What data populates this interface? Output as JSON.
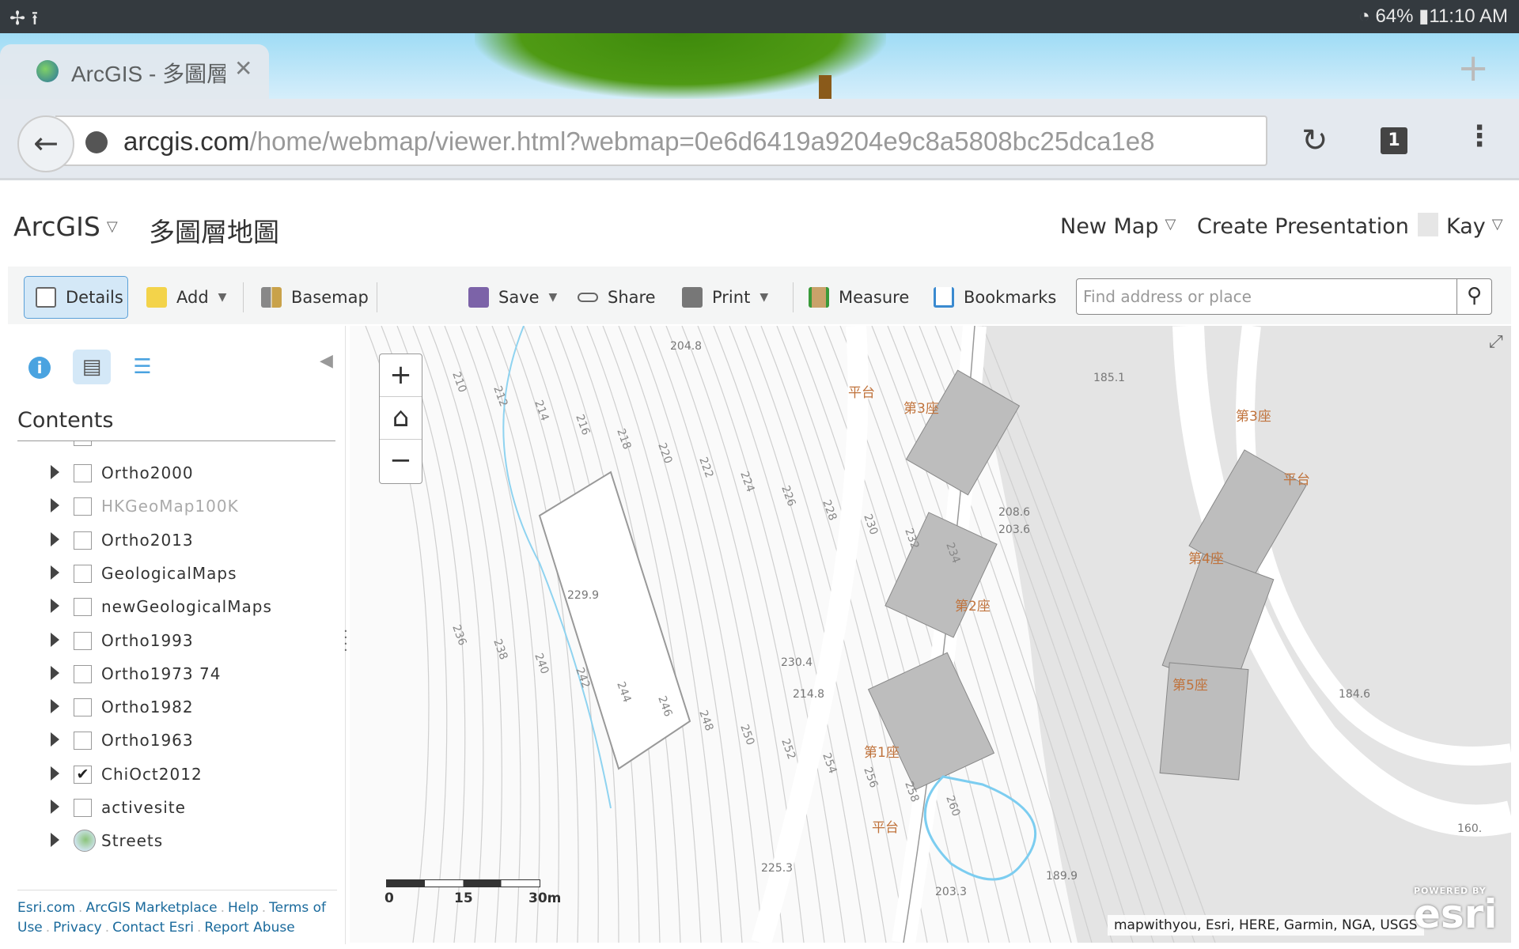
{
  "status_bar": {
    "time": "11:10 AM",
    "battery": "64%"
  },
  "browser": {
    "tab_title": "ArcGIS - 多圖層地圖",
    "url_host": "arcgis.com",
    "url_path": "/home/webmap/viewer.html?webmap=0e6d6419a9204e9c8a5808bc25dca1e8",
    "tab_count": "1"
  },
  "header": {
    "app": "ArcGIS",
    "map_title": "多圖層地圖",
    "new_map": "New Map",
    "create_presentation": "Create Presentation",
    "user": "Kay"
  },
  "toolbar": {
    "details": "Details",
    "add": "Add",
    "basemap": "Basemap",
    "save": "Save",
    "share": "Share",
    "print": "Print",
    "measure": "Measure",
    "bookmarks": "Bookmarks",
    "search_placeholder": "Find address or place"
  },
  "sidebar": {
    "contents_title": "Contents",
    "layers": [
      {
        "label": "Ortho2000",
        "checked": false
      },
      {
        "label": "HKGeoMap100K",
        "checked": false,
        "dimmed": true
      },
      {
        "label": "Ortho2013",
        "checked": false
      },
      {
        "label": "GeologicalMaps",
        "checked": false
      },
      {
        "label": "newGeologicalMaps",
        "checked": false
      },
      {
        "label": "Ortho1993",
        "checked": false
      },
      {
        "label": "Ortho1973 74",
        "checked": false
      },
      {
        "label": "Ortho1982",
        "checked": false
      },
      {
        "label": "Ortho1963",
        "checked": false
      },
      {
        "label": "ChiOct2012",
        "checked": true
      },
      {
        "label": "activesite",
        "checked": false
      },
      {
        "label": "Streets",
        "basemap": true
      }
    ],
    "footer_links": [
      "Esri.com",
      "ArcGIS Marketplace",
      "Help",
      "Terms of Use",
      "Privacy",
      "Contact Esri",
      "Report Abuse"
    ]
  },
  "map": {
    "scale_labels": [
      "0",
      "15",
      "30m"
    ],
    "attribution": "mapwithyou, Esri, HERE, Garmin, NGA, USGS",
    "powered_by": "POWERED BY",
    "esri_logo": "esri",
    "labels": [
      "平台",
      "第3座",
      "第2座",
      "第1座",
      "第4座",
      "第5座",
      "平台",
      "平台",
      "第3座",
      "229.9",
      "208.6",
      "203.6",
      "185.1",
      "184.6",
      "203.3",
      "189.9",
      "160.",
      "204.8",
      "230.4",
      "214.8",
      "225.3"
    ],
    "contour_labels": [
      "210",
      "212",
      "214",
      "216",
      "218",
      "220",
      "222",
      "224",
      "226",
      "228",
      "230",
      "232",
      "234",
      "236",
      "238",
      "240",
      "242",
      "244",
      "246",
      "248",
      "250",
      "252",
      "254",
      "256",
      "258",
      "260"
    ]
  }
}
